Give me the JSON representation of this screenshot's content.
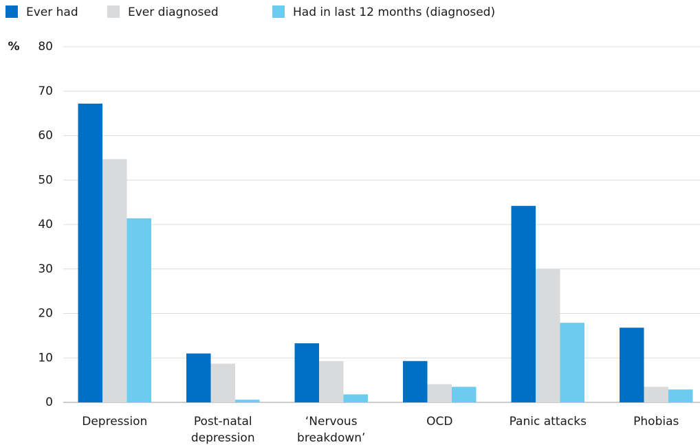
{
  "chart_data": {
    "type": "bar",
    "y_label": "%",
    "categories": [
      "Depression",
      "Post-natal depression",
      "‘Nervous breakdown’",
      "OCD",
      "Panic attacks",
      "Phobias"
    ],
    "series": [
      {
        "name": "Ever had",
        "color": "#0070c4",
        "values": [
          67.2,
          11,
          13.3,
          9.3,
          44.2,
          16.8
        ]
      },
      {
        "name": "Ever diagnosed",
        "color": "#d9dadb",
        "values": [
          54.7,
          8.7,
          9.3,
          4.1,
          30,
          3.5
        ]
      },
      {
        "name": "Had in last 12 months (diagnosed)",
        "color": "#6ccbee",
        "values": [
          41.4,
          0.6,
          1.8,
          3.5,
          17.9,
          2.9
        ]
      }
    ],
    "ylim": [
      0,
      80
    ],
    "yticks": [
      0,
      10,
      20,
      30,
      40,
      50,
      60,
      70,
      80
    ],
    "grid": true,
    "legend": "top"
  }
}
